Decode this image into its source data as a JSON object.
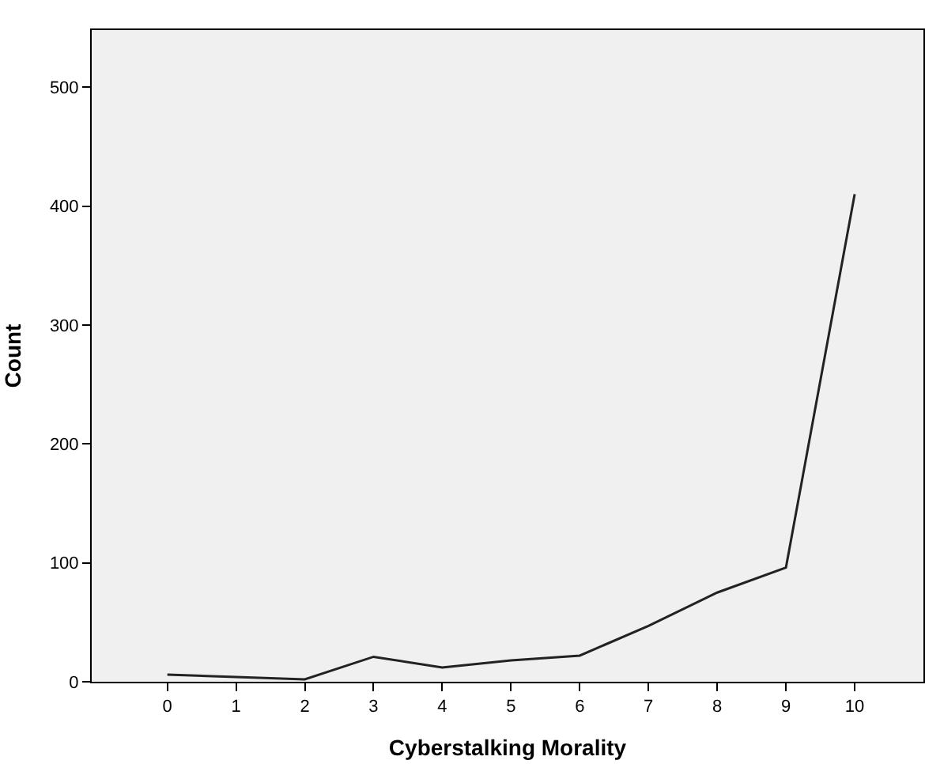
{
  "chart_data": {
    "type": "line",
    "xlabel": "Cyberstalking Morality",
    "ylabel": "Count",
    "x": [
      0,
      1,
      2,
      3,
      4,
      5,
      6,
      7,
      8,
      9,
      10
    ],
    "series": [
      {
        "color": "#222222",
        "values": [
          6,
          4,
          2,
          21,
          12,
          18,
          22,
          47,
          75,
          96,
          410
        ]
      }
    ],
    "xlim": [
      -1.1,
      11
    ],
    "xticks": [
      0,
      1,
      2,
      3,
      4,
      5,
      6,
      7,
      8,
      9,
      10
    ],
    "ylim": [
      0,
      548
    ],
    "yticks": [
      0,
      100,
      200,
      300,
      400,
      500
    ],
    "grid": false,
    "legend": false,
    "marker": "none",
    "line_style": "solid"
  }
}
